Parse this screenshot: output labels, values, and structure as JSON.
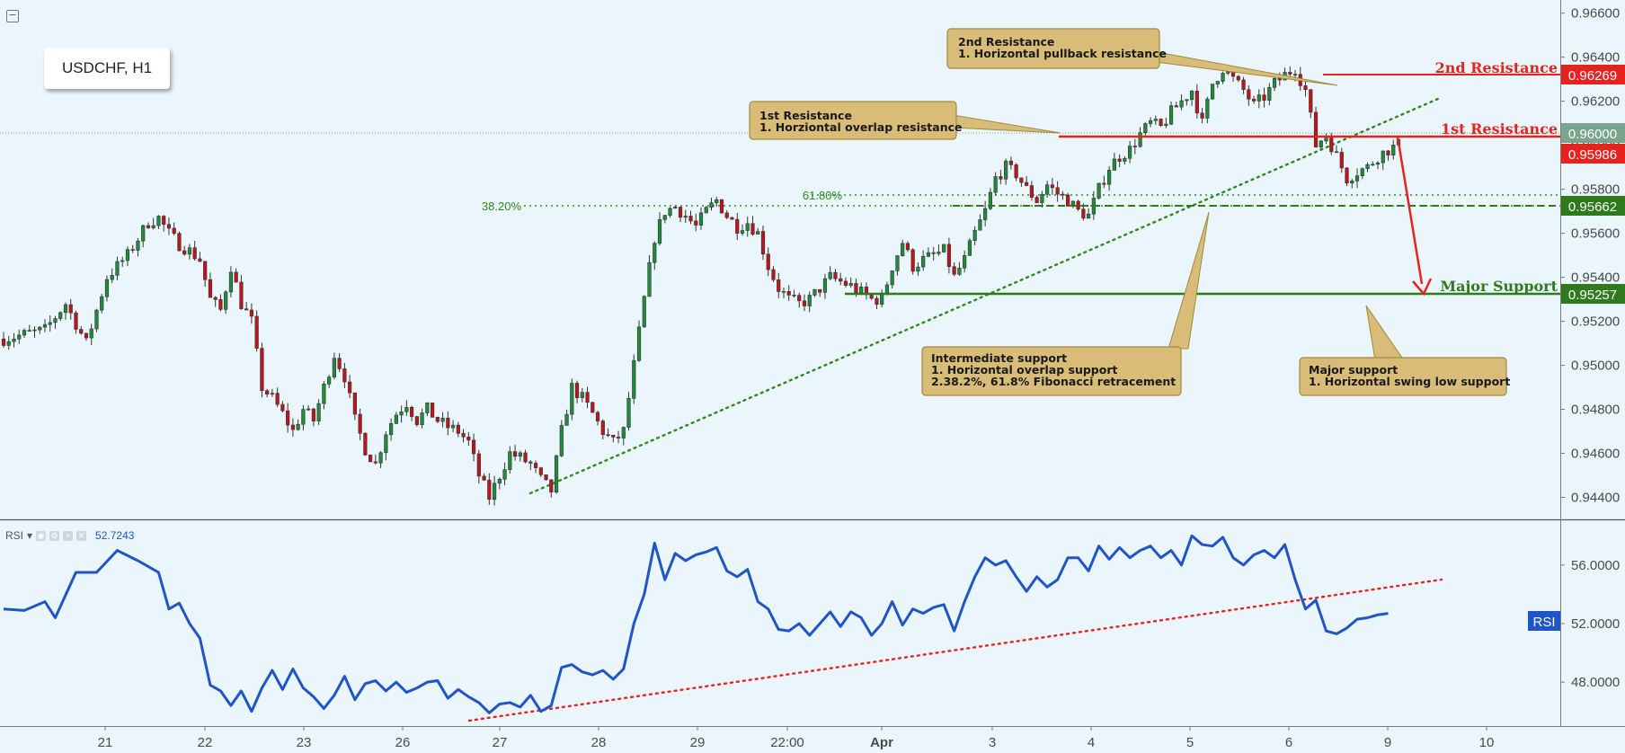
{
  "symbol": "USDCHF, H1",
  "rsi_indicator": {
    "label": "RSI",
    "dropdown": "▾",
    "value": "52.7243",
    "tag": "RSI"
  },
  "levels": {
    "second_resistance": {
      "label": "2nd Resistance",
      "price": "0.96269",
      "color": "#e8231f"
    },
    "first_resistance": {
      "label": "1st Resistance",
      "price": "0.95986",
      "color": "#e8231f"
    },
    "current": {
      "price": "0.96000",
      "color": "#7aa48c"
    },
    "intermediate_support": {
      "price": "0.95662",
      "color": "#2f7a1c"
    },
    "major_support": {
      "label": "Major Support",
      "price": "0.95257",
      "color": "#2f7a1c"
    }
  },
  "fib_labels": {
    "fib382": "38.20%",
    "fib618": "61.80%"
  },
  "annotations": {
    "second_resistance": [
      "2nd Resistance",
      "1. Horizontal pullback resistance"
    ],
    "first_resistance": [
      "1st Resistance",
      "1. Horziontal overlap resistance"
    ],
    "intermediate_support": [
      "Intermediate support",
      "1. Horizontal overlap support",
      "2.38.2%, 61.8% Fibonacci retracement"
    ],
    "major_support": [
      "Major support",
      "1. Horizontal swing low support"
    ]
  },
  "chart_data": [
    {
      "type": "candlestick",
      "title": "USDCHF, H1",
      "ylim": [
        0.943,
        0.9666
      ],
      "y_ticks": [
        "0.96600",
        "0.96400",
        "0.96200",
        "0.96000",
        "0.95800",
        "0.95600",
        "0.95400",
        "0.95200",
        "0.95000",
        "0.94800",
        "0.94600",
        "0.94400"
      ],
      "x_ticks": [
        "21",
        "22",
        "23",
        "26",
        "27",
        "28",
        "29",
        "22:00",
        "Apr",
        "3",
        "4",
        "5",
        "6",
        "9",
        "10"
      ],
      "close_path": [
        [
          0,
          0.9512
        ],
        [
          8,
          0.9516
        ],
        [
          12,
          0.9528
        ],
        [
          16,
          0.951
        ],
        [
          20,
          0.954
        ],
        [
          24,
          0.955
        ],
        [
          28,
          0.9565
        ],
        [
          30,
          0.9567
        ],
        [
          32,
          0.956
        ],
        [
          34,
          0.9555
        ],
        [
          36,
          0.9552
        ],
        [
          38,
          0.9548
        ],
        [
          40,
          0.953
        ],
        [
          42,
          0.9525
        ],
        [
          44,
          0.9545
        ],
        [
          46,
          0.9528
        ],
        [
          48,
          0.952
        ],
        [
          50,
          0.949
        ],
        [
          52,
          0.9485
        ],
        [
          54,
          0.9478
        ],
        [
          56,
          0.947
        ],
        [
          58,
          0.948
        ],
        [
          60,
          0.9475
        ],
        [
          62,
          0.949
        ],
        [
          64,
          0.9505
        ],
        [
          66,
          0.9495
        ],
        [
          68,
          0.9475
        ],
        [
          70,
          0.9462
        ],
        [
          72,
          0.9455
        ],
        [
          74,
          0.947
        ],
        [
          76,
          0.9478
        ],
        [
          78,
          0.9483
        ],
        [
          80,
          0.9475
        ],
        [
          82,
          0.948
        ],
        [
          84,
          0.9475
        ],
        [
          86,
          0.9472
        ],
        [
          88,
          0.947
        ],
        [
          90,
          0.9465
        ],
        [
          92,
          0.945
        ],
        [
          94,
          0.944
        ],
        [
          96,
          0.945
        ],
        [
          98,
          0.946
        ],
        [
          100,
          0.9458
        ],
        [
          102,
          0.9455
        ],
        [
          104,
          0.9448
        ],
        [
          106,
          0.9443
        ],
        [
          108,
          0.947
        ],
        [
          110,
          0.949
        ],
        [
          112,
          0.9485
        ],
        [
          114,
          0.9478
        ],
        [
          116,
          0.947
        ],
        [
          118,
          0.9465
        ],
        [
          120,
          0.947
        ],
        [
          122,
          0.95
        ],
        [
          124,
          0.953
        ],
        [
          126,
          0.9558
        ],
        [
          128,
          0.957
        ],
        [
          130,
          0.9572
        ],
        [
          132,
          0.9568
        ],
        [
          134,
          0.9563
        ],
        [
          136,
          0.957
        ],
        [
          138,
          0.9575
        ],
        [
          140,
          0.9568
        ],
        [
          142,
          0.9563
        ],
        [
          144,
          0.9565
        ],
        [
          146,
          0.956
        ],
        [
          148,
          0.9545
        ],
        [
          150,
          0.9535
        ],
        [
          152,
          0.953
        ],
        [
          154,
          0.9528
        ],
        [
          156,
          0.953
        ],
        [
          158,
          0.9535
        ],
        [
          160,
          0.954
        ],
        [
          162,
          0.9538
        ],
        [
          164,
          0.9536
        ],
        [
          166,
          0.9533
        ],
        [
          168,
          0.953
        ],
        [
          170,
          0.953
        ],
        [
          172,
          0.9545
        ],
        [
          174,
          0.9556
        ],
        [
          176,
          0.9545
        ],
        [
          178,
          0.9548
        ],
        [
          180,
          0.955
        ],
        [
          182,
          0.9552
        ],
        [
          184,
          0.954
        ],
        [
          186,
          0.9548
        ],
        [
          188,
          0.956
        ],
        [
          190,
          0.957
        ],
        [
          192,
          0.9585
        ],
        [
          194,
          0.959
        ],
        [
          196,
          0.9587
        ],
        [
          198,
          0.958
        ],
        [
          200,
          0.9575
        ],
        [
          202,
          0.9582
        ],
        [
          204,
          0.9578
        ],
        [
          206,
          0.9575
        ],
        [
          208,
          0.957
        ],
        [
          210,
          0.9568
        ],
        [
          212,
          0.958
        ],
        [
          214,
          0.959
        ],
        [
          216,
          0.9595
        ],
        [
          218,
          0.9598
        ],
        [
          220,
          0.9605
        ],
        [
          222,
          0.961
        ],
        [
          224,
          0.9608
        ],
        [
          226,
          0.9615
        ],
        [
          228,
          0.962
        ],
        [
          230,
          0.9625
        ],
        [
          232,
          0.961
        ],
        [
          234,
          0.9628
        ],
        [
          236,
          0.9635
        ],
        [
          238,
          0.963
        ],
        [
          240,
          0.9625
        ],
        [
          242,
          0.9618
        ],
        [
          244,
          0.9622
        ],
        [
          246,
          0.9628
        ],
        [
          248,
          0.9632
        ],
        [
          250,
          0.9635
        ],
        [
          252,
          0.9625
        ],
        [
          254,
          0.96
        ],
        [
          256,
          0.9605
        ],
        [
          258,
          0.9595
        ],
        [
          260,
          0.9585
        ],
        [
          262,
          0.9588
        ],
        [
          264,
          0.959
        ],
        [
          266,
          0.9595
        ],
        [
          268,
          0.9598
        ],
        [
          270,
          0.96
        ]
      ]
    },
    {
      "type": "line",
      "title": "RSI",
      "ylim": [
        45,
        59
      ],
      "y_ticks": [
        "56.0000",
        "52.0000",
        "48.0000"
      ],
      "x_ticks": [
        "21",
        "22",
        "23",
        "26",
        "27",
        "28",
        "29",
        "22:00",
        "Apr",
        "3",
        "4",
        "5",
        "6",
        "9",
        "10"
      ],
      "series": [
        {
          "name": "RSI",
          "points": [
            [
              0,
              53.0
            ],
            [
              4,
              52.9
            ],
            [
              8,
              53.5
            ],
            [
              10,
              52.4
            ],
            [
              14,
              55.5
            ],
            [
              18,
              55.5
            ],
            [
              22,
              57.0
            ],
            [
              26,
              56.3
            ],
            [
              30,
              55.5
            ],
            [
              32,
              53.0
            ],
            [
              34,
              53.4
            ],
            [
              36,
              52.0
            ],
            [
              38,
              51.0
            ],
            [
              40,
              47.8
            ],
            [
              42,
              47.4
            ],
            [
              44,
              46.4
            ],
            [
              46,
              47.4
            ],
            [
              48,
              46.0
            ],
            [
              50,
              47.6
            ],
            [
              52,
              48.8
            ],
            [
              54,
              47.5
            ],
            [
              56,
              48.9
            ],
            [
              58,
              47.6
            ],
            [
              60,
              47.0
            ],
            [
              62,
              46.2
            ],
            [
              64,
              47.1
            ],
            [
              66,
              48.4
            ],
            [
              68,
              46.8
            ],
            [
              70,
              47.9
            ],
            [
              72,
              48.1
            ],
            [
              74,
              47.4
            ],
            [
              76,
              48.0
            ],
            [
              78,
              47.3
            ],
            [
              80,
              47.6
            ],
            [
              82,
              48.0
            ],
            [
              84,
              48.1
            ],
            [
              86,
              46.9
            ],
            [
              88,
              47.5
            ],
            [
              90,
              47.0
            ],
            [
              92,
              46.6
            ],
            [
              94,
              45.9
            ],
            [
              96,
              46.5
            ],
            [
              98,
              46.6
            ],
            [
              100,
              46.3
            ],
            [
              102,
              47.1
            ],
            [
              104,
              46.0
            ],
            [
              106,
              46.4
            ],
            [
              108,
              49.0
            ],
            [
              110,
              49.2
            ],
            [
              112,
              48.7
            ],
            [
              114,
              48.5
            ],
            [
              116,
              48.8
            ],
            [
              118,
              48.2
            ],
            [
              120,
              48.9
            ],
            [
              122,
              52.0
            ],
            [
              124,
              54.0
            ],
            [
              126,
              57.5
            ],
            [
              128,
              55.0
            ],
            [
              130,
              56.8
            ],
            [
              132,
              56.3
            ],
            [
              134,
              56.7
            ],
            [
              136,
              56.9
            ],
            [
              138,
              57.2
            ],
            [
              140,
              55.6
            ],
            [
              142,
              55.2
            ],
            [
              144,
              55.7
            ],
            [
              146,
              53.5
            ],
            [
              148,
              53.0
            ],
            [
              150,
              51.6
            ],
            [
              152,
              51.5
            ],
            [
              154,
              52.0
            ],
            [
              156,
              51.2
            ],
            [
              158,
              52.0
            ],
            [
              160,
              52.8
            ],
            [
              162,
              51.8
            ],
            [
              164,
              52.8
            ],
            [
              166,
              52.4
            ],
            [
              168,
              51.2
            ],
            [
              170,
              52.0
            ],
            [
              172,
              53.5
            ],
            [
              174,
              51.9
            ],
            [
              176,
              53.0
            ],
            [
              178,
              52.7
            ],
            [
              180,
              53.1
            ],
            [
              182,
              53.3
            ],
            [
              184,
              51.5
            ],
            [
              186,
              53.5
            ],
            [
              188,
              55.2
            ],
            [
              190,
              56.5
            ],
            [
              192,
              56.0
            ],
            [
              194,
              56.3
            ],
            [
              196,
              55.2
            ],
            [
              198,
              54.2
            ],
            [
              200,
              55.2
            ],
            [
              202,
              54.5
            ],
            [
              204,
              55.0
            ],
            [
              206,
              56.5
            ],
            [
              208,
              56.5
            ],
            [
              210,
              55.6
            ],
            [
              212,
              57.3
            ],
            [
              214,
              56.4
            ],
            [
              216,
              57.2
            ],
            [
              218,
              56.5
            ],
            [
              220,
              57.0
            ],
            [
              222,
              57.3
            ],
            [
              224,
              56.5
            ],
            [
              226,
              57.0
            ],
            [
              228,
              56.0
            ],
            [
              230,
              58.0
            ],
            [
              232,
              57.4
            ],
            [
              234,
              57.3
            ],
            [
              236,
              57.9
            ],
            [
              238,
              56.5
            ],
            [
              240,
              56.0
            ],
            [
              242,
              56.7
            ],
            [
              244,
              57.0
            ],
            [
              246,
              56.5
            ],
            [
              248,
              57.4
            ],
            [
              250,
              55.0
            ],
            [
              252,
              53.0
            ],
            [
              254,
              53.6
            ],
            [
              256,
              51.5
            ],
            [
              258,
              51.3
            ],
            [
              260,
              51.7
            ],
            [
              262,
              52.3
            ],
            [
              264,
              52.4
            ],
            [
              266,
              52.6
            ],
            [
              268,
              52.7
            ]
          ]
        }
      ]
    }
  ]
}
